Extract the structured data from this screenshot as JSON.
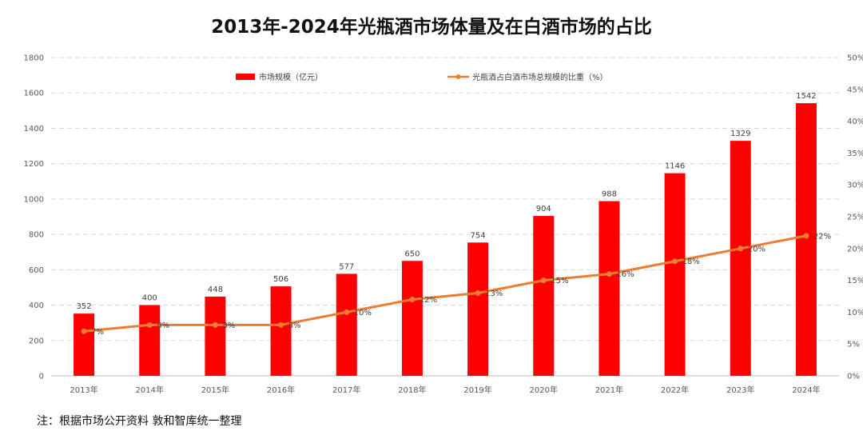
{
  "title": "2013年-2024年光瓶酒市场体量及在白酒市场的占比",
  "note": "注：根据市场公开资料  敦和智库统一整理",
  "colors": {
    "bar": "#ff0000",
    "line": "#ed7d31",
    "grid": "#d9d9d9",
    "axis": "#bfbfbf"
  },
  "chart_data": {
    "type": "bar",
    "title": "2013年-2024年光瓶酒市场体量及在白酒市场的占比",
    "categories": [
      "2013年",
      "2014年",
      "2015年",
      "2016年",
      "2017年",
      "2018年",
      "2019年",
      "2020年",
      "2021年",
      "2022年",
      "2023年",
      "2024年"
    ],
    "series": [
      {
        "name": "市场规模（亿元）",
        "type": "bar",
        "axis": "left",
        "values": [
          352,
          400,
          448,
          506,
          577,
          650,
          754,
          904,
          988,
          1146,
          1329,
          1542
        ],
        "labels": [
          "352",
          "400",
          "448",
          "506",
          "577",
          "650",
          "754",
          "904",
          "988",
          "1146",
          "1329",
          "1542"
        ]
      },
      {
        "name": "光瓶酒占白酒市场总规模的比重（%）",
        "type": "line",
        "axis": "right",
        "values": [
          7,
          8,
          8,
          8,
          10,
          12,
          13,
          15,
          16,
          18,
          20,
          22
        ],
        "labels": [
          "7%",
          "8%",
          "8%",
          "8%",
          "10%",
          "12%",
          "13%",
          "15%",
          "16%",
          "18%",
          "20%",
          "22%"
        ]
      }
    ],
    "ylim": [
      0,
      1800
    ],
    "y_ticks": [
      "0",
      "200",
      "400",
      "600",
      "800",
      "1000",
      "1200",
      "1400",
      "1600",
      "1800"
    ],
    "y2lim": [
      0,
      50
    ],
    "y2_ticks": [
      "0%",
      "5%",
      "10%",
      "15%",
      "20%",
      "25%",
      "30%",
      "35%",
      "40%",
      "45%",
      "50%"
    ],
    "legend_position": "top-center",
    "grid": true
  }
}
